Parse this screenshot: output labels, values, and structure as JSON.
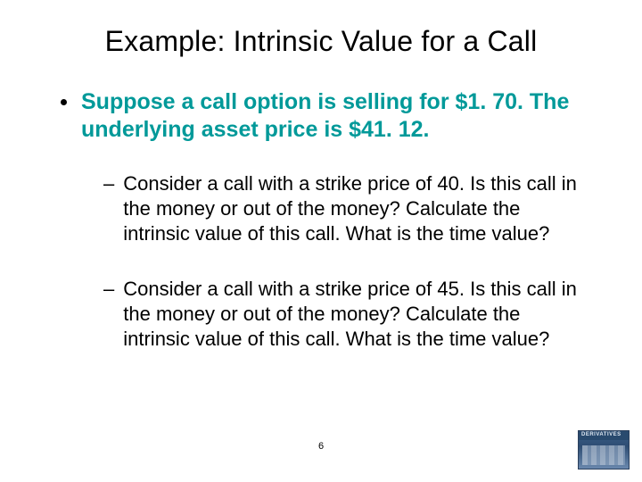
{
  "title": "Example: Intrinsic Value for a Call",
  "main_bullet": "Suppose a call option is selling for $1. 70. The underlying asset price is $41. 12.",
  "sub_bullets": [
    "Consider a call with a strike price of 40. Is this call in the money or out of the money? Calculate the intrinsic value of this call.  What is the time value?",
    "Consider a call with a strike price of 45. Is this call in the money or out of the money? Calculate the intrinsic value of this call. What is the time value?"
  ],
  "page_number": "6",
  "accent_color": "#009999",
  "corner_caption": "DERIVATIVES"
}
